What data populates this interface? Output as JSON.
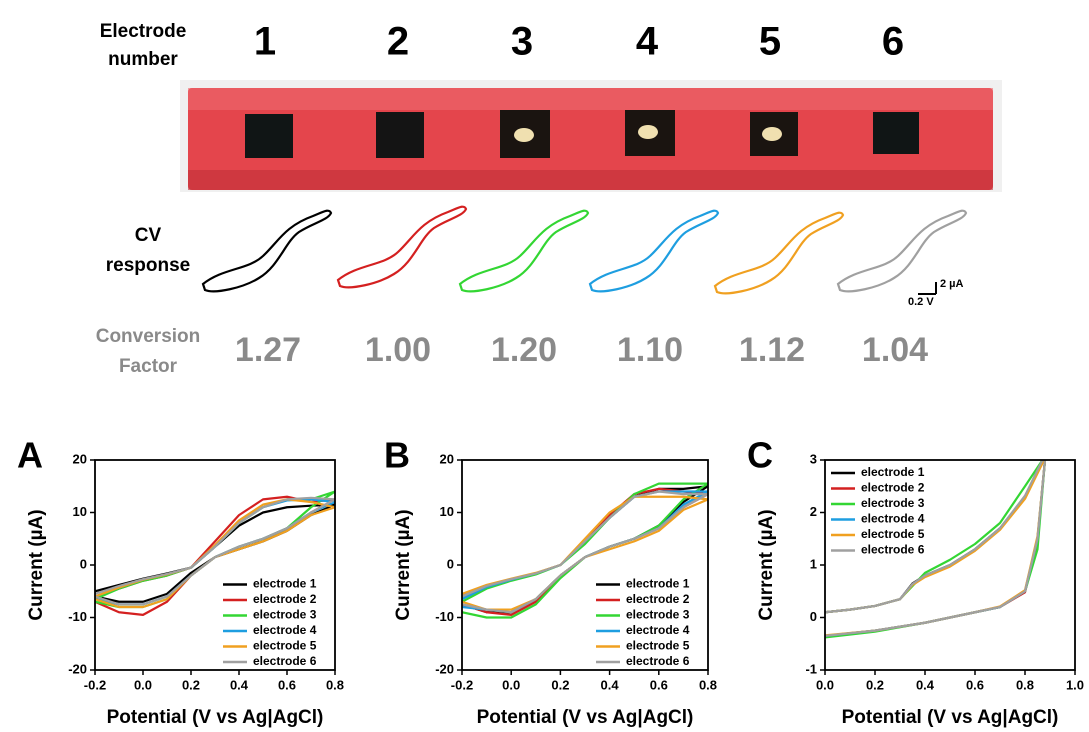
{
  "header": {
    "label": [
      "Electrode",
      "number"
    ],
    "numbers": [
      "1",
      "2",
      "3",
      "4",
      "5",
      "6"
    ]
  },
  "cv_label": [
    "CV",
    "response"
  ],
  "scale_bar": {
    "current": "2 µA",
    "potential": "0.2 V"
  },
  "conversion": {
    "label": [
      "Conversion",
      "Factor"
    ],
    "values": [
      "1.27",
      "1.00",
      "1.20",
      "1.10",
      "1.12",
      "1.04"
    ]
  },
  "chart_data": [
    {
      "type": "line",
      "panel": "A",
      "xlabel": "Potential (V vs Ag|AgCl)",
      "ylabel": "Current (µA)",
      "xlim": [
        -0.2,
        0.8
      ],
      "ylim": [
        -20,
        20
      ],
      "xticks": [
        -0.2,
        {
          "value": 0,
          "label": "0.0"
        },
        0.2,
        0.4,
        0.6,
        0.8
      ],
      "yticks": [
        -20,
        -10,
        0,
        10,
        20
      ],
      "legend": "lower right",
      "grid": false,
      "x": [
        -0.2,
        -0.1,
        0,
        0.1,
        0.2,
        0.3,
        0.4,
        0.5,
        0.6,
        0.7,
        0.8,
        0.7,
        0.6,
        0.5,
        0.4,
        0.3,
        0.2,
        0.1,
        0,
        -0.1,
        -0.2
      ],
      "series": [
        {
          "name": "electrode 1",
          "color": "#000000",
          "values": [
            -5,
            -3.8,
            -2.6,
            -1.6,
            -0.5,
            3.5,
            7.5,
            10,
            11,
            11.3,
            11.5,
            9.5,
            6.5,
            4.5,
            3,
            1.5,
            -1.5,
            -5.5,
            -7,
            -7,
            -6
          ]
        },
        {
          "name": "electrode 2",
          "color": "#d42020",
          "values": [
            -6,
            -4.5,
            -3,
            -2,
            -0.5,
            4.5,
            9.5,
            12.5,
            13,
            12,
            12.5,
            10,
            7,
            5,
            3.5,
            1.5,
            -2,
            -7,
            -9.5,
            -9,
            -7
          ]
        },
        {
          "name": "electrode 3",
          "color": "#33d633",
          "values": [
            -6.5,
            -4.5,
            -3,
            -2,
            -0.5,
            3.5,
            8,
            11,
            12.5,
            12.5,
            14,
            11,
            7,
            5,
            3.5,
            1.5,
            -2,
            -6.5,
            -8,
            -8,
            -7
          ]
        },
        {
          "name": "electrode 4",
          "color": "#1e9ee0",
          "values": [
            -6,
            -4.3,
            -2.8,
            -1.8,
            -0.5,
            3.5,
            8,
            11,
            12.3,
            12.5,
            12,
            10,
            7,
            5,
            3.5,
            1.5,
            -2,
            -6,
            -7.5,
            -7.5,
            -6.5
          ]
        },
        {
          "name": "electrode 5",
          "color": "#f0a020",
          "values": [
            -6,
            -4.3,
            -2.8,
            -1.8,
            -0.5,
            3.8,
            8.5,
            11.5,
            12.5,
            12,
            11,
            9.5,
            6.5,
            4.5,
            3,
            1.5,
            -2,
            -6.5,
            -8,
            -8,
            -6.5
          ]
        },
        {
          "name": "electrode 6",
          "color": "#a0a0a0",
          "values": [
            -5.5,
            -4,
            -2.7,
            -1.7,
            -0.5,
            3.5,
            8,
            11,
            12.5,
            12.8,
            12.5,
            10,
            7,
            5,
            3.5,
            1.5,
            -2,
            -6,
            -7.5,
            -7.5,
            -6
          ]
        }
      ]
    },
    {
      "type": "line",
      "panel": "B",
      "xlabel": "Potential (V vs Ag|AgCl)",
      "ylabel": "Current (µA)",
      "xlim": [
        -0.2,
        0.8
      ],
      "ylim": [
        -20,
        20
      ],
      "xticks": [
        -0.2,
        {
          "value": 0,
          "label": "0.0"
        },
        0.2,
        0.4,
        0.6,
        0.8
      ],
      "yticks": [
        -20,
        -10,
        0,
        10,
        20
      ],
      "legend": "lower right",
      "grid": false,
      "x": [
        -0.2,
        -0.1,
        0,
        0.1,
        0.2,
        0.3,
        0.4,
        0.5,
        0.6,
        0.7,
        0.8,
        0.7,
        0.6,
        0.5,
        0.4,
        0.3,
        0.2,
        0.1,
        0,
        -0.1,
        -0.2
      ],
      "series": [
        {
          "name": "electrode 1",
          "color": "#000000",
          "values": [
            -6,
            -4,
            -2.8,
            -1.6,
            0,
            4.5,
            9,
            13,
            14.5,
            14.5,
            15,
            12,
            7.5,
            5,
            3.5,
            1.5,
            -2,
            -6.5,
            -9,
            -9,
            -7.5
          ]
        },
        {
          "name": "electrode 2",
          "color": "#d42020",
          "values": [
            -6,
            -4,
            -2.8,
            -1.6,
            0,
            4.5,
            9.5,
            13.5,
            14.5,
            14,
            13.5,
            11,
            7,
            5,
            3.5,
            1.5,
            -2,
            -7,
            -9.5,
            -9,
            -7.5
          ]
        },
        {
          "name": "electrode 3",
          "color": "#33d633",
          "values": [
            -7,
            -4.5,
            -3,
            -1.8,
            0,
            4,
            9,
            13.5,
            15.5,
            15.5,
            15.5,
            12.5,
            7.5,
            5,
            3.5,
            1.5,
            -2.5,
            -7.5,
            -10,
            -10,
            -9
          ]
        },
        {
          "name": "electrode 4",
          "color": "#1e9ee0",
          "values": [
            -6.5,
            -4.2,
            -2.8,
            -1.6,
            0,
            4.5,
            9,
            13,
            14,
            14,
            14,
            11.5,
            7,
            5,
            3.5,
            1.5,
            -2,
            -6.5,
            -9,
            -8.5,
            -8
          ]
        },
        {
          "name": "electrode 5",
          "color": "#f0a020",
          "values": [
            -5.5,
            -3.8,
            -2.6,
            -1.5,
            0,
            5,
            10,
            13,
            13,
            13,
            12.5,
            10.5,
            6.5,
            4.5,
            3,
            1.5,
            -2,
            -6.5,
            -8.5,
            -8.5,
            -7
          ]
        },
        {
          "name": "electrode 6",
          "color": "#a0a0a0",
          "values": [
            -6,
            -4,
            -2.7,
            -1.6,
            0,
            4.5,
            9,
            13,
            14,
            13.5,
            13.5,
            11,
            7,
            5,
            3.5,
            1.5,
            -2,
            -6.5,
            -9,
            -8.5,
            -7.5
          ]
        }
      ]
    },
    {
      "type": "line",
      "panel": "C",
      "xlabel": "Potential (V vs Ag|AgCl)",
      "ylabel": "Current (µA)",
      "xlim": [
        0,
        1
      ],
      "ylim": [
        -1,
        3
      ],
      "xticks": [
        {
          "value": 0,
          "label": "0.0"
        },
        0.2,
        0.4,
        0.6,
        0.8,
        {
          "value": 1,
          "label": "1.0"
        }
      ],
      "yticks": [
        -1,
        0,
        1,
        2,
        3
      ],
      "legend": "upper left",
      "grid": false,
      "x": [
        0,
        0.1,
        0.2,
        0.3,
        0.35,
        0.4,
        0.5,
        0.6,
        0.7,
        0.8,
        0.87,
        0.88,
        0.85,
        0.8,
        0.7,
        0.6,
        0.4,
        0.2,
        0
      ],
      "series": [
        {
          "name": "electrode 1",
          "color": "#000000",
          "values": [
            0.1,
            0.15,
            0.22,
            0.35,
            0.65,
            0.8,
            1,
            1.3,
            1.7,
            2.3,
            3,
            3,
            1.5,
            0.5,
            0.2,
            0.1,
            -0.1,
            -0.25,
            -0.35
          ]
        },
        {
          "name": "electrode 2",
          "color": "#d42020",
          "values": [
            0.1,
            0.15,
            0.22,
            0.35,
            0.62,
            0.78,
            0.98,
            1.28,
            1.68,
            2.28,
            2.95,
            3,
            1.45,
            0.48,
            0.2,
            0.1,
            -0.1,
            -0.26,
            -0.36
          ]
        },
        {
          "name": "electrode 3",
          "color": "#33d633",
          "values": [
            0.1,
            0.15,
            0.22,
            0.35,
            0.6,
            0.85,
            1.1,
            1.4,
            1.8,
            2.5,
            3,
            3,
            1.3,
            0.5,
            0.2,
            0.1,
            -0.1,
            -0.27,
            -0.38
          ]
        },
        {
          "name": "electrode 4",
          "color": "#1e9ee0",
          "values": [
            0.1,
            0.15,
            0.22,
            0.35,
            0.63,
            0.79,
            0.99,
            1.29,
            1.69,
            2.3,
            2.98,
            3,
            1.5,
            0.5,
            0.2,
            0.1,
            -0.1,
            -0.25,
            -0.35
          ]
        },
        {
          "name": "electrode 5",
          "color": "#f0a020",
          "values": [
            0.1,
            0.15,
            0.22,
            0.35,
            0.62,
            0.77,
            0.97,
            1.27,
            1.67,
            2.26,
            2.94,
            3,
            1.55,
            0.52,
            0.21,
            0.1,
            -0.1,
            -0.25,
            -0.34
          ]
        },
        {
          "name": "electrode 6",
          "color": "#a0a0a0",
          "values": [
            0.1,
            0.15,
            0.22,
            0.35,
            0.64,
            0.8,
            1,
            1.3,
            1.7,
            2.32,
            3,
            3,
            1.5,
            0.5,
            0.2,
            0.1,
            -0.1,
            -0.25,
            -0.35
          ]
        }
      ]
    }
  ]
}
